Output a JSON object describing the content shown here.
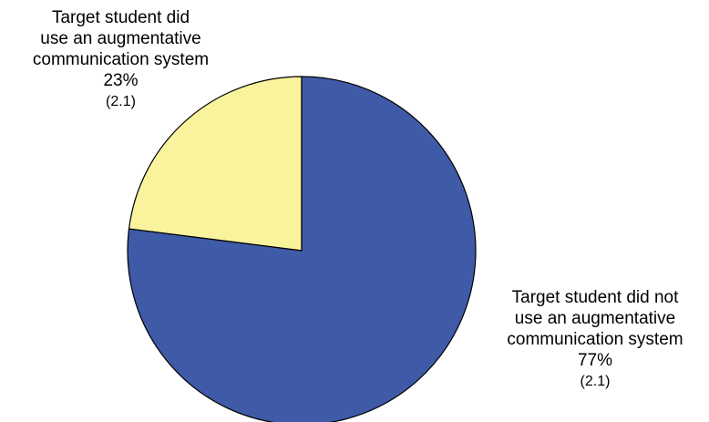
{
  "chart_data": {
    "type": "pie",
    "title": "",
    "slices": [
      {
        "label_lines": [
          "Target student did",
          "use an augmentative",
          "communication system"
        ],
        "value": 23,
        "value_label": "23%",
        "se_label": "(2.1)",
        "color": "#FAF39E"
      },
      {
        "label_lines": [
          "Target student did not",
          "use an augmentative",
          "communication system"
        ],
        "value": 77,
        "value_label": "77%",
        "se_label": "(2.1)",
        "color": "#3F5AA6"
      }
    ],
    "start_angle": "12 o'clock",
    "direction": "counterclockwise from top for first slice",
    "legend": "none",
    "outline_color": "#000000"
  }
}
